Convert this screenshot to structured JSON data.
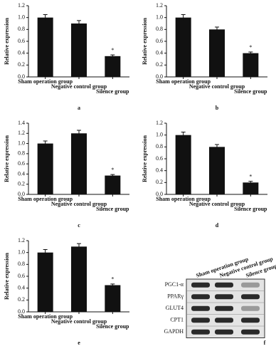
{
  "chart_data": [
    {
      "type": "bar",
      "panel": "a",
      "y_label": "Relative expression",
      "categories": [
        "Sham operation group",
        "Negative control group",
        "Silence group"
      ],
      "values": [
        1.0,
        0.9,
        0.35
      ],
      "errors": [
        0.05,
        0.05,
        0.02
      ],
      "color": "#111111",
      "annotations": [
        null,
        null,
        "*"
      ],
      "ylim": [
        0,
        1.2
      ],
      "yticks": [
        {
          "value": 0,
          "label": "0.0"
        },
        0.2,
        0.4,
        0.6,
        0.8,
        {
          "value": 1,
          "label": "1.0"
        },
        1.2
      ]
    },
    {
      "type": "bar",
      "panel": "b",
      "y_label": "Relative expression",
      "categories": [
        "Sham operation group",
        "Negative control group",
        "Silence group"
      ],
      "values": [
        1.0,
        0.8,
        0.4
      ],
      "errors": [
        0.05,
        0.04,
        0.02
      ],
      "color": "#111111",
      "annotations": [
        null,
        null,
        "*"
      ],
      "ylim": [
        0,
        1.2
      ],
      "yticks": [
        {
          "value": 0,
          "label": "0.0"
        },
        0.2,
        0.4,
        0.6,
        0.8,
        {
          "value": 1,
          "label": "1.0"
        },
        1.2
      ]
    },
    {
      "type": "bar",
      "panel": "c",
      "y_label": "Relative expression",
      "categories": [
        "Sham operation group",
        "Negative control group",
        "Silence group"
      ],
      "values": [
        1.0,
        1.2,
        0.37
      ],
      "errors": [
        0.05,
        0.06,
        0.02
      ],
      "color": "#111111",
      "annotations": [
        null,
        null,
        "*"
      ],
      "ylim": [
        0,
        1.4
      ],
      "yticks": [
        {
          "value": 0,
          "label": "0.0"
        },
        0.2,
        0.4,
        0.6,
        0.8,
        {
          "value": 1,
          "label": "1.0"
        },
        1.2,
        1.4
      ]
    },
    {
      "type": "bar",
      "panel": "d",
      "y_label": "Relative expression",
      "categories": [
        "Sham operation group",
        "Negative control group",
        "Silence group"
      ],
      "values": [
        1.0,
        0.8,
        0.2
      ],
      "errors": [
        0.05,
        0.04,
        0.02
      ],
      "color": "#111111",
      "annotations": [
        null,
        null,
        "*"
      ],
      "ylim": [
        0,
        1.2
      ],
      "yticks": [
        {
          "value": 0,
          "label": "0.0"
        },
        0.2,
        0.4,
        0.6,
        0.8,
        {
          "value": 1,
          "label": "1.0"
        },
        1.2
      ]
    },
    {
      "type": "bar",
      "panel": "e",
      "y_label": "Relative expression",
      "categories": [
        "Sham operation group",
        "Negative control group",
        "Silence group"
      ],
      "values": [
        1.0,
        1.1,
        0.45
      ],
      "errors": [
        0.05,
        0.05,
        0.02
      ],
      "color": "#111111",
      "annotations": [
        null,
        null,
        "*"
      ],
      "ylim": [
        0,
        1.2
      ],
      "yticks": [
        {
          "value": 0,
          "label": "0.0"
        },
        0.2,
        0.4,
        0.6,
        0.8,
        {
          "value": 1,
          "label": "1.0"
        },
        1.2
      ]
    }
  ],
  "blot": {
    "panel": "f",
    "columns": [
      "Sham operation group",
      "Negative control group",
      "Silence group"
    ],
    "rows": [
      "PGC1-α",
      "PPARγ",
      "GLUT4",
      "CPT1",
      "GAPDH"
    ]
  }
}
